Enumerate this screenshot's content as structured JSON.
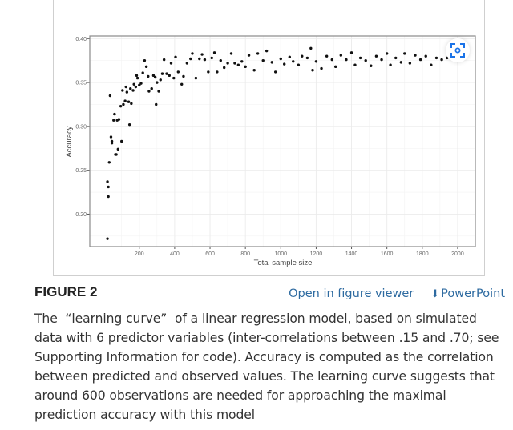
{
  "figure": {
    "label": "FIGURE 2",
    "open_viewer_link": "Open in figure viewer",
    "powerpoint_link": "PowerPoint",
    "caption": "The  “learning curve”  of a linear regression model, based on simulated data with 6 predictor variables (inter-correlations between .15 and .70; see Supporting Information for code). Accuracy is computed as the correlation between predicted and observed values. The learning curve suggests that around 600 observations are needed for approaching the maximal prediction accuracy with this model",
    "icons": {
      "scan": "image-search-icon",
      "download": "download-icon"
    },
    "link_color": "#2d6aa0"
  },
  "chart_data": {
    "type": "scatter",
    "title": "",
    "xlabel": "Total sample size",
    "ylabel": "Accuracy",
    "xlim": [
      -80,
      2100
    ],
    "ylim": [
      0.163,
      0.403
    ],
    "xticks": [
      200,
      400,
      600,
      800,
      1000,
      1200,
      1400,
      1600,
      1800,
      2000
    ],
    "yticks": [
      0.2,
      0.25,
      0.3,
      0.35,
      0.4
    ],
    "ytick_labels": [
      "0.20",
      "0.25",
      "0.30",
      "0.35",
      "0.40"
    ],
    "grid": true,
    "points": [
      [
        20,
        0.172
      ],
      [
        20,
        0.237
      ],
      [
        25,
        0.231
      ],
      [
        25,
        0.22
      ],
      [
        30,
        0.259
      ],
      [
        35,
        0.335
      ],
      [
        40,
        0.288
      ],
      [
        45,
        0.283
      ],
      [
        45,
        0.281
      ],
      [
        55,
        0.307
      ],
      [
        60,
        0.314
      ],
      [
        65,
        0.268
      ],
      [
        70,
        0.268
      ],
      [
        75,
        0.307
      ],
      [
        80,
        0.274
      ],
      [
        85,
        0.308
      ],
      [
        95,
        0.323
      ],
      [
        100,
        0.283
      ],
      [
        105,
        0.341
      ],
      [
        110,
        0.325
      ],
      [
        120,
        0.329
      ],
      [
        125,
        0.345
      ],
      [
        130,
        0.339
      ],
      [
        140,
        0.328
      ],
      [
        145,
        0.302
      ],
      [
        150,
        0.343
      ],
      [
        155,
        0.326
      ],
      [
        165,
        0.341
      ],
      [
        170,
        0.348
      ],
      [
        180,
        0.345
      ],
      [
        185,
        0.358
      ],
      [
        190,
        0.355
      ],
      [
        200,
        0.347
      ],
      [
        210,
        0.349
      ],
      [
        220,
        0.361
      ],
      [
        230,
        0.375
      ],
      [
        240,
        0.368
      ],
      [
        250,
        0.357
      ],
      [
        255,
        0.34
      ],
      [
        270,
        0.343
      ],
      [
        280,
        0.358
      ],
      [
        290,
        0.356
      ],
      [
        295,
        0.325
      ],
      [
        300,
        0.35
      ],
      [
        310,
        0.34
      ],
      [
        320,
        0.353
      ],
      [
        330,
        0.36
      ],
      [
        340,
        0.376
      ],
      [
        355,
        0.36
      ],
      [
        370,
        0.358
      ],
      [
        380,
        0.372
      ],
      [
        395,
        0.355
      ],
      [
        405,
        0.379
      ],
      [
        420,
        0.362
      ],
      [
        440,
        0.348
      ],
      [
        450,
        0.357
      ],
      [
        470,
        0.372
      ],
      [
        490,
        0.377
      ],
      [
        500,
        0.383
      ],
      [
        520,
        0.355
      ],
      [
        540,
        0.377
      ],
      [
        555,
        0.382
      ],
      [
        570,
        0.376
      ],
      [
        590,
        0.362
      ],
      [
        610,
        0.378
      ],
      [
        625,
        0.384
      ],
      [
        640,
        0.362
      ],
      [
        660,
        0.375
      ],
      [
        680,
        0.367
      ],
      [
        700,
        0.372
      ],
      [
        720,
        0.383
      ],
      [
        740,
        0.372
      ],
      [
        760,
        0.37
      ],
      [
        780,
        0.374
      ],
      [
        800,
        0.368
      ],
      [
        820,
        0.381
      ],
      [
        850,
        0.364
      ],
      [
        870,
        0.383
      ],
      [
        900,
        0.375
      ],
      [
        920,
        0.386
      ],
      [
        950,
        0.373
      ],
      [
        970,
        0.362
      ],
      [
        1000,
        0.377
      ],
      [
        1020,
        0.371
      ],
      [
        1050,
        0.379
      ],
      [
        1070,
        0.374
      ],
      [
        1100,
        0.37
      ],
      [
        1120,
        0.38
      ],
      [
        1150,
        0.378
      ],
      [
        1170,
        0.389
      ],
      [
        1180,
        0.364
      ],
      [
        1200,
        0.374
      ],
      [
        1230,
        0.366
      ],
      [
        1260,
        0.38
      ],
      [
        1290,
        0.376
      ],
      [
        1310,
        0.368
      ],
      [
        1340,
        0.381
      ],
      [
        1370,
        0.376
      ],
      [
        1400,
        0.384
      ],
      [
        1420,
        0.37
      ],
      [
        1450,
        0.378
      ],
      [
        1480,
        0.375
      ],
      [
        1510,
        0.369
      ],
      [
        1540,
        0.38
      ],
      [
        1570,
        0.376
      ],
      [
        1600,
        0.383
      ],
      [
        1620,
        0.37
      ],
      [
        1650,
        0.378
      ],
      [
        1680,
        0.373
      ],
      [
        1700,
        0.383
      ],
      [
        1730,
        0.372
      ],
      [
        1760,
        0.381
      ],
      [
        1790,
        0.376
      ],
      [
        1820,
        0.38
      ],
      [
        1850,
        0.37
      ],
      [
        1880,
        0.378
      ],
      [
        1910,
        0.376
      ],
      [
        1940,
        0.378
      ],
      [
        1970,
        0.377
      ],
      [
        1990,
        0.379
      ]
    ]
  }
}
